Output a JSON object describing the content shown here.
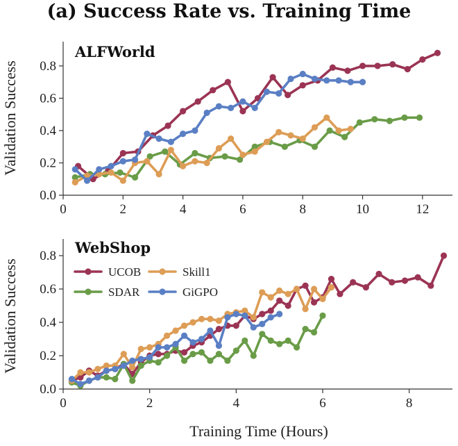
{
  "figure": {
    "title": "(a) Success Rate vs. Training Time",
    "xlabel": "Training Time (Hours)",
    "ylabel": "Validation Success"
  },
  "colors": {
    "UCOB": "#9b3454",
    "SDAR": "#6a9c48",
    "Skill1": "#dd9d56",
    "GiGPO": "#5a7fc4"
  },
  "chart_data": [
    {
      "type": "line",
      "panel": "ALFWorld",
      "xlim": [
        0,
        13
      ],
      "ylim": [
        0,
        0.95
      ],
      "xticks": [
        0,
        2,
        4,
        6,
        8,
        10,
        12
      ],
      "yticks": [
        0.0,
        0.2,
        0.4,
        0.6,
        0.8
      ],
      "legend": "none",
      "grid": false,
      "series": [
        {
          "name": "UCOB",
          "x": [
            0.5,
            1.0,
            1.5,
            2.0,
            2.5,
            3.0,
            3.5,
            4.0,
            4.5,
            5.0,
            5.5,
            6.0,
            6.5,
            7.0,
            7.5,
            8.0,
            8.5,
            9.0,
            9.5,
            10.0,
            10.5,
            11.0,
            11.5,
            12.0,
            12.5
          ],
          "y": [
            0.18,
            0.1,
            0.15,
            0.26,
            0.27,
            0.37,
            0.43,
            0.52,
            0.58,
            0.65,
            0.7,
            0.52,
            0.6,
            0.73,
            0.62,
            0.68,
            0.71,
            0.79,
            0.77,
            0.8,
            0.8,
            0.81,
            0.78,
            0.84,
            0.88
          ]
        },
        {
          "name": "SDAR",
          "x": [
            0.4,
            0.9,
            1.4,
            1.9,
            2.4,
            2.9,
            3.4,
            3.9,
            4.4,
            4.9,
            5.4,
            5.9,
            6.4,
            6.9,
            7.4,
            7.9,
            8.4,
            8.9,
            9.4,
            9.9,
            10.4,
            10.9,
            11.4,
            11.9
          ],
          "y": [
            0.11,
            0.13,
            0.13,
            0.14,
            0.11,
            0.24,
            0.27,
            0.19,
            0.26,
            0.23,
            0.24,
            0.22,
            0.3,
            0.33,
            0.3,
            0.34,
            0.3,
            0.4,
            0.36,
            0.45,
            0.47,
            0.46,
            0.48,
            0.48
          ]
        },
        {
          "name": "Skill1",
          "x": [
            0.4,
            0.8,
            1.2,
            1.6,
            2.0,
            2.4,
            2.8,
            3.2,
            3.6,
            4.0,
            4.4,
            4.8,
            5.2,
            5.6,
            6.0,
            6.4,
            6.8,
            7.2,
            7.6,
            8.0,
            8.4,
            8.8,
            9.2,
            9.6
          ],
          "y": [
            0.08,
            0.12,
            0.13,
            0.14,
            0.09,
            0.2,
            0.21,
            0.13,
            0.28,
            0.18,
            0.21,
            0.2,
            0.29,
            0.35,
            0.25,
            0.27,
            0.33,
            0.39,
            0.37,
            0.35,
            0.42,
            0.48,
            0.4,
            0.41
          ]
        },
        {
          "name": "GiGPO",
          "x": [
            0.4,
            0.8,
            1.2,
            1.6,
            2.0,
            2.4,
            2.8,
            3.2,
            3.6,
            4.0,
            4.4,
            4.8,
            5.2,
            5.6,
            6.0,
            6.4,
            6.8,
            7.2,
            7.6,
            8.0,
            8.4,
            8.8,
            9.2,
            9.6,
            10.0
          ],
          "y": [
            0.16,
            0.09,
            0.16,
            0.18,
            0.21,
            0.22,
            0.38,
            0.35,
            0.33,
            0.38,
            0.4,
            0.51,
            0.55,
            0.54,
            0.58,
            0.54,
            0.64,
            0.63,
            0.72,
            0.75,
            0.72,
            0.71,
            0.71,
            0.7,
            0.7
          ]
        }
      ]
    },
    {
      "type": "line",
      "panel": "WebShop",
      "xlim": [
        0,
        9
      ],
      "ylim": [
        0,
        0.9
      ],
      "xticks": [
        0,
        2,
        4,
        6,
        8
      ],
      "yticks": [
        0.0,
        0.2,
        0.4,
        0.6,
        0.8
      ],
      "legend": "upper-left",
      "grid": false,
      "series": [
        {
          "name": "UCOB",
          "x": [
            0.2,
            0.4,
            0.6,
            0.8,
            1.0,
            1.2,
            1.4,
            1.6,
            1.8,
            2.0,
            2.2,
            2.4,
            2.6,
            2.8,
            3.0,
            3.2,
            3.4,
            3.6,
            3.8,
            4.0,
            4.2,
            4.4,
            4.6,
            4.8,
            5.0,
            5.2,
            5.4,
            5.6,
            5.8,
            6.0,
            6.2,
            6.4,
            6.7,
            7.0,
            7.3,
            7.6,
            7.9,
            8.2,
            8.5,
            8.8
          ],
          "y": [
            0.05,
            0.07,
            0.11,
            0.08,
            0.11,
            0.12,
            0.15,
            0.09,
            0.16,
            0.2,
            0.21,
            0.21,
            0.23,
            0.22,
            0.26,
            0.28,
            0.32,
            0.36,
            0.38,
            0.38,
            0.44,
            0.42,
            0.45,
            0.47,
            0.53,
            0.5,
            0.6,
            0.62,
            0.52,
            0.55,
            0.66,
            0.57,
            0.64,
            0.61,
            0.69,
            0.64,
            0.65,
            0.67,
            0.62,
            0.8
          ]
        },
        {
          "name": "SDAR",
          "x": [
            0.2,
            0.4,
            0.6,
            0.8,
            1.0,
            1.2,
            1.4,
            1.6,
            1.8,
            2.0,
            2.2,
            2.4,
            2.6,
            2.8,
            3.0,
            3.2,
            3.4,
            3.6,
            3.8,
            4.0,
            4.2,
            4.4,
            4.6,
            4.8,
            5.0,
            5.2,
            5.4,
            5.6,
            5.8,
            6.0
          ],
          "y": [
            0.04,
            0.02,
            0.05,
            0.07,
            0.07,
            0.06,
            0.15,
            0.05,
            0.14,
            0.17,
            0.16,
            0.2,
            0.25,
            0.17,
            0.21,
            0.22,
            0.17,
            0.21,
            0.17,
            0.23,
            0.29,
            0.2,
            0.33,
            0.29,
            0.27,
            0.29,
            0.25,
            0.36,
            0.34,
            0.44
          ]
        },
        {
          "name": "Skill1",
          "x": [
            0.2,
            0.4,
            0.6,
            0.8,
            1.0,
            1.2,
            1.4,
            1.6,
            1.8,
            2.0,
            2.2,
            2.4,
            2.6,
            2.8,
            3.0,
            3.2,
            3.4,
            3.6,
            3.8,
            4.0,
            4.2,
            4.4,
            4.6,
            4.8,
            5.0,
            5.2,
            5.4,
            5.6,
            5.8,
            6.0,
            6.2
          ],
          "y": [
            0.05,
            0.1,
            0.1,
            0.12,
            0.14,
            0.14,
            0.21,
            0.13,
            0.24,
            0.25,
            0.27,
            0.32,
            0.35,
            0.38,
            0.4,
            0.42,
            0.42,
            0.41,
            0.45,
            0.46,
            0.47,
            0.43,
            0.58,
            0.55,
            0.59,
            0.57,
            0.6,
            0.48,
            0.6,
            0.54,
            0.61
          ]
        },
        {
          "name": "GiGPO",
          "x": [
            0.2,
            0.4,
            0.6,
            0.8,
            1.0,
            1.2,
            1.4,
            1.6,
            1.8,
            2.0,
            2.2,
            2.4,
            2.6,
            2.8,
            3.0,
            3.2,
            3.4,
            3.6,
            3.8,
            4.0,
            4.2,
            4.4,
            4.6,
            4.8,
            5.0
          ],
          "y": [
            0.06,
            0.03,
            0.05,
            0.07,
            0.11,
            0.12,
            0.14,
            0.17,
            0.18,
            0.19,
            0.25,
            0.25,
            0.27,
            0.32,
            0.28,
            0.3,
            0.35,
            0.26,
            0.43,
            0.45,
            0.44,
            0.37,
            0.39,
            0.43,
            0.45
          ]
        }
      ]
    }
  ]
}
